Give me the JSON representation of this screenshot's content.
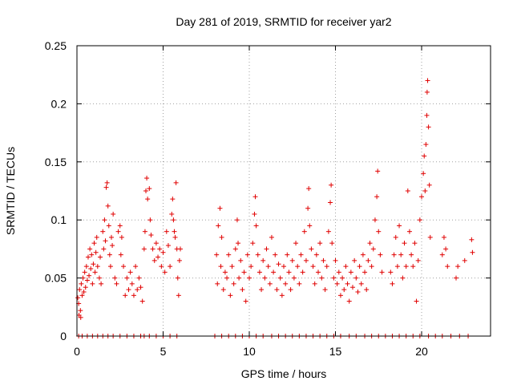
{
  "chart_data": {
    "type": "scatter",
    "title": "Day 281 of 2019, SRMTID for receiver yar2",
    "xlabel": "GPS time / hours",
    "ylabel": "SRMTID / TECUs",
    "xlim": [
      0,
      24
    ],
    "ylim": [
      0,
      0.25
    ],
    "xticks": [
      0,
      5,
      10,
      15,
      20
    ],
    "xtick_labels": [
      "0",
      "5",
      "10",
      "15",
      "20"
    ],
    "yticks": [
      0,
      0.05,
      0.1,
      0.15,
      0.2,
      0.25
    ],
    "ytick_labels": [
      "0",
      "0.05",
      "0.1",
      "0.15",
      "0.2",
      "0.25"
    ],
    "grid": true,
    "legend": "none",
    "marker": "+",
    "color": "#e00000",
    "series": [
      {
        "name": "SRMTID",
        "points": [
          [
            0.05,
            0.033
          ],
          [
            0.1,
            0.028
          ],
          [
            0.12,
            0.018
          ],
          [
            0.15,
            0.04
          ],
          [
            0.2,
            0.022
          ],
          [
            0.22,
            0.016
          ],
          [
            0.25,
            0.045
          ],
          [
            0.3,
            0.035
          ],
          [
            0.35,
            0.05
          ],
          [
            0.4,
            0.038
          ],
          [
            0.45,
            0.055
          ],
          [
            0.5,
            0.042
          ],
          [
            0.55,
            0.06
          ],
          [
            0.6,
            0.048
          ],
          [
            0.65,
            0.068
          ],
          [
            0.7,
            0.052
          ],
          [
            0.75,
            0.075
          ],
          [
            0.8,
            0.058
          ],
          [
            0.85,
            0.07
          ],
          [
            0.9,
            0.045
          ],
          [
            0.95,
            0.062
          ],
          [
            1.0,
            0.08
          ],
          [
            1.05,
            0.055
          ],
          [
            1.1,
            0.072
          ],
          [
            1.15,
            0.085
          ],
          [
            1.2,
            0.06
          ],
          [
            1.3,
            0.05
          ],
          [
            1.35,
            0.068
          ],
          [
            1.4,
            0.045
          ],
          [
            1.5,
            0.09
          ],
          [
            1.55,
            0.075
          ],
          [
            1.6,
            0.1
          ],
          [
            1.65,
            0.082
          ],
          [
            1.7,
            0.128
          ],
          [
            1.75,
            0.132
          ],
          [
            1.8,
            0.112
          ],
          [
            1.85,
            0.095
          ],
          [
            1.9,
            0.07
          ],
          [
            1.95,
            0.06
          ],
          [
            2.0,
            0.085
          ],
          [
            2.05,
            0.078
          ],
          [
            2.1,
            0.105
          ],
          [
            2.2,
            0.05
          ],
          [
            2.3,
            0.045
          ],
          [
            2.4,
            0.09
          ],
          [
            2.5,
            0.095
          ],
          [
            2.55,
            0.07
          ],
          [
            2.6,
            0.085
          ],
          [
            2.7,
            0.06
          ],
          [
            2.8,
            0.035
          ],
          [
            2.9,
            0.05
          ],
          [
            3.0,
            0.04
          ],
          [
            3.1,
            0.055
          ],
          [
            3.2,
            0.045
          ],
          [
            3.3,
            0.035
          ],
          [
            3.4,
            0.06
          ],
          [
            3.5,
            0.04
          ],
          [
            3.6,
            0.05
          ],
          [
            3.7,
            0.042
          ],
          [
            3.8,
            0.03
          ],
          [
            3.9,
            0.075
          ],
          [
            3.95,
            0.09
          ],
          [
            4.0,
            0.125
          ],
          [
            4.05,
            0.136
          ],
          [
            4.1,
            0.118
          ],
          [
            4.2,
            0.127
          ],
          [
            4.25,
            0.1
          ],
          [
            4.3,
            0.087
          ],
          [
            4.4,
            0.075
          ],
          [
            4.5,
            0.065
          ],
          [
            4.6,
            0.08
          ],
          [
            4.7,
            0.068
          ],
          [
            4.8,
            0.075
          ],
          [
            4.9,
            0.06
          ],
          [
            5.0,
            0.072
          ],
          [
            5.1,
            0.055
          ],
          [
            5.2,
            0.09
          ],
          [
            5.3,
            0.078
          ],
          [
            5.4,
            0.06
          ],
          [
            5.5,
            0.105
          ],
          [
            5.55,
            0.118
          ],
          [
            5.6,
            0.1
          ],
          [
            5.65,
            0.09
          ],
          [
            5.7,
            0.085
          ],
          [
            5.75,
            0.132
          ],
          [
            5.8,
            0.075
          ],
          [
            5.85,
            0.05
          ],
          [
            5.9,
            0.035
          ],
          [
            5.95,
            0.065
          ],
          [
            6.0,
            0.075
          ],
          [
            8.1,
            0.07
          ],
          [
            8.15,
            0.045
          ],
          [
            8.2,
            0.095
          ],
          [
            8.3,
            0.11
          ],
          [
            8.35,
            0.06
          ],
          [
            8.4,
            0.085
          ],
          [
            8.5,
            0.04
          ],
          [
            8.6,
            0.055
          ],
          [
            8.7,
            0.05
          ],
          [
            8.8,
            0.07
          ],
          [
            8.9,
            0.035
          ],
          [
            9.0,
            0.06
          ],
          [
            9.1,
            0.045
          ],
          [
            9.2,
            0.075
          ],
          [
            9.3,
            0.1
          ],
          [
            9.35,
            0.08
          ],
          [
            9.4,
            0.05
          ],
          [
            9.5,
            0.065
          ],
          [
            9.6,
            0.04
          ],
          [
            9.7,
            0.055
          ],
          [
            9.8,
            0.03
          ],
          [
            9.9,
            0.07
          ],
          [
            10.0,
            0.05
          ],
          [
            10.1,
            0.06
          ],
          [
            10.2,
            0.08
          ],
          [
            10.3,
            0.105
          ],
          [
            10.35,
            0.12
          ],
          [
            10.4,
            0.095
          ],
          [
            10.5,
            0.07
          ],
          [
            10.6,
            0.055
          ],
          [
            10.7,
            0.04
          ],
          [
            10.8,
            0.065
          ],
          [
            10.9,
            0.05
          ],
          [
            11.0,
            0.075
          ],
          [
            11.1,
            0.06
          ],
          [
            11.2,
            0.045
          ],
          [
            11.3,
            0.085
          ],
          [
            11.4,
            0.055
          ],
          [
            11.5,
            0.07
          ],
          [
            11.6,
            0.04
          ],
          [
            11.7,
            0.062
          ],
          [
            11.8,
            0.05
          ],
          [
            11.9,
            0.035
          ],
          [
            12.0,
            0.06
          ],
          [
            12.1,
            0.045
          ],
          [
            12.2,
            0.07
          ],
          [
            12.3,
            0.055
          ],
          [
            12.4,
            0.04
          ],
          [
            12.5,
            0.065
          ],
          [
            12.6,
            0.05
          ],
          [
            12.7,
            0.08
          ],
          [
            12.8,
            0.06
          ],
          [
            12.9,
            0.045
          ],
          [
            13.0,
            0.07
          ],
          [
            13.1,
            0.055
          ],
          [
            13.2,
            0.09
          ],
          [
            13.3,
            0.065
          ],
          [
            13.4,
            0.11
          ],
          [
            13.45,
            0.127
          ],
          [
            13.5,
            0.095
          ],
          [
            13.6,
            0.075
          ],
          [
            13.7,
            0.06
          ],
          [
            13.8,
            0.045
          ],
          [
            13.9,
            0.07
          ],
          [
            14.0,
            0.055
          ],
          [
            14.1,
            0.08
          ],
          [
            14.2,
            0.05
          ],
          [
            14.3,
            0.065
          ],
          [
            14.4,
            0.04
          ],
          [
            14.5,
            0.06
          ],
          [
            14.6,
            0.09
          ],
          [
            14.7,
            0.115
          ],
          [
            14.75,
            0.13
          ],
          [
            14.8,
            0.08
          ],
          [
            14.9,
            0.05
          ],
          [
            15.0,
            0.065
          ],
          [
            15.1,
            0.045
          ],
          [
            15.2,
            0.055
          ],
          [
            15.3,
            0.035
          ],
          [
            15.4,
            0.05
          ],
          [
            15.5,
            0.04
          ],
          [
            15.6,
            0.06
          ],
          [
            15.7,
            0.045
          ],
          [
            15.8,
            0.03
          ],
          [
            15.9,
            0.055
          ],
          [
            16.0,
            0.042
          ],
          [
            16.1,
            0.065
          ],
          [
            16.2,
            0.05
          ],
          [
            16.3,
            0.038
          ],
          [
            16.4,
            0.06
          ],
          [
            16.5,
            0.045
          ],
          [
            16.6,
            0.07
          ],
          [
            16.7,
            0.055
          ],
          [
            16.8,
            0.04
          ],
          [
            16.9,
            0.065
          ],
          [
            17.0,
            0.08
          ],
          [
            17.1,
            0.06
          ],
          [
            17.2,
            0.075
          ],
          [
            17.3,
            0.1
          ],
          [
            17.4,
            0.12
          ],
          [
            17.45,
            0.142
          ],
          [
            17.5,
            0.09
          ],
          [
            17.6,
            0.07
          ],
          [
            17.7,
            0.055
          ],
          [
            18.2,
            0.055
          ],
          [
            18.3,
            0.045
          ],
          [
            18.4,
            0.07
          ],
          [
            18.5,
            0.085
          ],
          [
            18.6,
            0.06
          ],
          [
            18.7,
            0.095
          ],
          [
            18.8,
            0.07
          ],
          [
            18.9,
            0.05
          ],
          [
            19.0,
            0.08
          ],
          [
            19.1,
            0.06
          ],
          [
            19.2,
            0.125
          ],
          [
            19.3,
            0.09
          ],
          [
            19.4,
            0.07
          ],
          [
            19.5,
            0.06
          ],
          [
            19.6,
            0.08
          ],
          [
            19.7,
            0.03
          ],
          [
            19.8,
            0.065
          ],
          [
            19.9,
            0.1
          ],
          [
            20.0,
            0.12
          ],
          [
            20.1,
            0.14
          ],
          [
            20.15,
            0.155
          ],
          [
            20.2,
            0.125
          ],
          [
            20.25,
            0.165
          ],
          [
            20.3,
            0.19
          ],
          [
            20.32,
            0.21
          ],
          [
            20.35,
            0.22
          ],
          [
            20.4,
            0.18
          ],
          [
            20.45,
            0.13
          ],
          [
            20.5,
            0.085
          ],
          [
            21.2,
            0.07
          ],
          [
            21.3,
            0.085
          ],
          [
            21.4,
            0.075
          ],
          [
            21.5,
            0.06
          ],
          [
            22.0,
            0.05
          ],
          [
            22.1,
            0.06
          ],
          [
            22.5,
            0.065
          ],
          [
            22.9,
            0.083
          ],
          [
            22.95,
            0.072
          ]
        ]
      }
    ],
    "zero_points_x": [
      0.1,
      0.3,
      0.6,
      0.9,
      1.2,
      1.5,
      1.8,
      2.1,
      2.5,
      2.9,
      3.3,
      3.7,
      3.9,
      4.2,
      4.6,
      5.0,
      5.4,
      5.8,
      8.0,
      8.4,
      8.8,
      9.2,
      9.6,
      10.0,
      10.4,
      10.8,
      11.3,
      11.7,
      12.1,
      12.5,
      12.9,
      13.3,
      13.7,
      14.1,
      14.5,
      14.9,
      15.3,
      15.8,
      16.2,
      16.7,
      17.1,
      17.5,
      17.9,
      18.3,
      18.7,
      19.1,
      19.5,
      19.9,
      20.4,
      20.8,
      21.2,
      21.7,
      22.2,
      22.7
    ]
  }
}
